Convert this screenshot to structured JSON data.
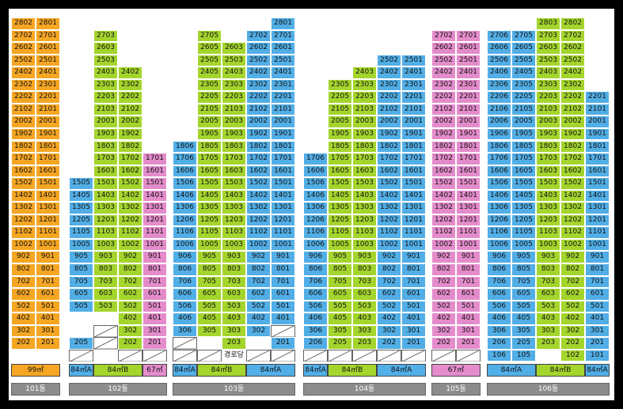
{
  "colors": {
    "orange": "#F5A623",
    "green": "#A4D52D",
    "pink": "#E48CCB",
    "blue": "#52AEE6"
  },
  "note": "경로당",
  "buildings": [
    {
      "name": "101동",
      "floors": {
        "min": 2,
        "max": 28
      },
      "cols": [
        {
          "units": [
            "01",
            "02"
          ],
          "color": "orange",
          "max": 28
        }
      ],
      "legend": [
        {
          "label": "99㎡",
          "color": "orange",
          "cols": 2
        }
      ]
    },
    {
      "name": "102동",
      "cols": [
        {
          "line": "05",
          "color": "blue",
          "max": 15,
          "ground": [
            3,
            4
          ]
        },
        {
          "line": "03",
          "color": "green",
          "max": 27
        },
        {
          "line": "02",
          "color": "green",
          "max": 24
        },
        {
          "line": "01",
          "color": "pink",
          "max": 17
        }
      ],
      "rows": [],
      "legend": [
        {
          "label": "84㎡A",
          "color": "blue",
          "cols": 1
        },
        {
          "label": "84㎡B",
          "color": "green",
          "cols": 2
        },
        {
          "label": "67㎡",
          "color": "pink",
          "cols": 1
        }
      ]
    }
  ]
}
